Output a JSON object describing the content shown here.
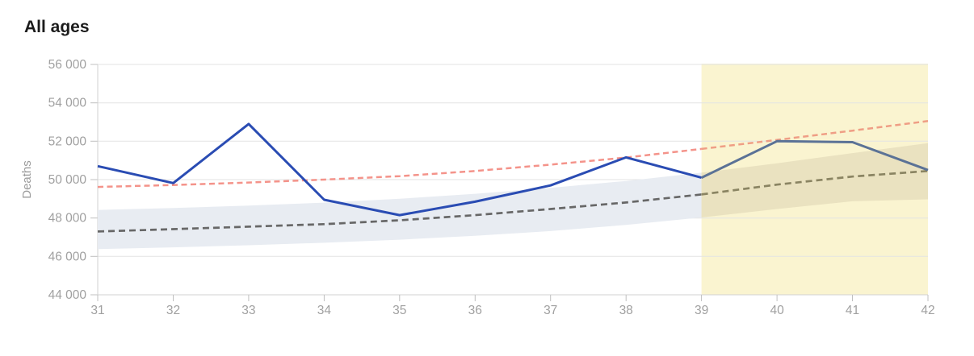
{
  "title": "All ages",
  "colors": {
    "background": "#ffffff",
    "title_text": "#1b1b1b",
    "tick_label": "#a0a0a0",
    "axis_label": "#9b9b9b",
    "gridline": "#e3e3e3",
    "axis_line": "#d2d2d2",
    "tick_mark": "#c0c0c0",
    "observed_line": "#2a4cb3",
    "observed_line_forecast": "#5b7296",
    "threshold_line": "#f4938a",
    "threshold_line_forecast": "#ef9e85",
    "baseline_line": "#676767",
    "baseline_line_forecast": "#8a8462",
    "band_fill": "#e8ecf2",
    "band_fill_forecast": "#eae2c0",
    "forecast_highlight": "#faf4d0"
  },
  "chart_data": {
    "type": "line",
    "title": "All ages",
    "xlabel": "",
    "ylabel": "Deaths",
    "x": [
      31,
      32,
      33,
      34,
      35,
      36,
      37,
      38,
      39,
      40,
      41,
      42
    ],
    "xlim": [
      31,
      42
    ],
    "ylim": [
      44000,
      56000
    ],
    "yticks": [
      44000,
      46000,
      48000,
      50000,
      52000,
      54000,
      56000
    ],
    "ytick_labels": [
      "44 000",
      "46 000",
      "48 000",
      "50 000",
      "52 000",
      "54 000",
      "56 000"
    ],
    "xtick_labels": [
      "31",
      "32",
      "33",
      "34",
      "35",
      "36",
      "37",
      "38",
      "39",
      "40",
      "41",
      "42"
    ],
    "grid": true,
    "legend_position": "none",
    "highlight_region": {
      "from": 39,
      "to": 42,
      "label": "forecast-weeks-highlight"
    },
    "series": [
      {
        "name": "observed-deaths",
        "type": "line",
        "line_style": "solid",
        "values": [
          50700,
          49820,
          52900,
          48950,
          48150,
          48850,
          49700,
          51160,
          50100,
          52000,
          51950,
          50500
        ]
      },
      {
        "name": "upper-threshold-dashed",
        "type": "line",
        "line_style": "dashed",
        "values": [
          49620,
          49720,
          49850,
          50000,
          50180,
          50450,
          50780,
          51150,
          51600,
          52070,
          52550,
          53050
        ]
      },
      {
        "name": "expected-baseline-dashed",
        "type": "line",
        "line_style": "dashed",
        "values": [
          47300,
          47420,
          47550,
          47680,
          47880,
          48150,
          48470,
          48810,
          49230,
          49740,
          50160,
          50450
        ]
      },
      {
        "name": "expected-range-band",
        "type": "area",
        "upper": [
          48420,
          48520,
          48650,
          48800,
          49000,
          49260,
          49570,
          49930,
          50360,
          50850,
          51380,
          51900
        ],
        "lower": [
          46380,
          46470,
          46580,
          46710,
          46870,
          47070,
          47320,
          47640,
          48030,
          48470,
          48870,
          48970
        ]
      }
    ]
  }
}
